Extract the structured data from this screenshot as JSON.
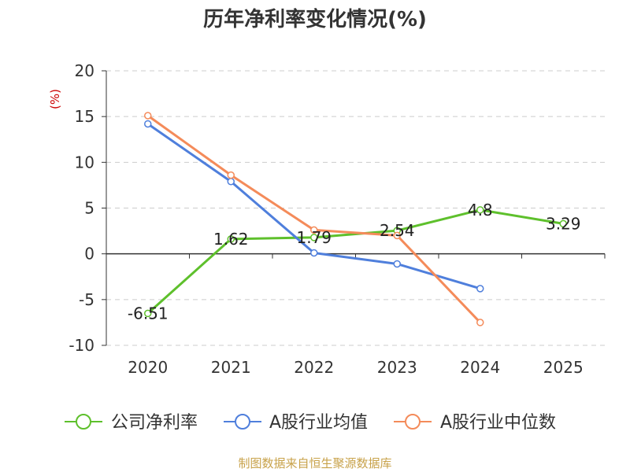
{
  "chart_data": {
    "type": "line",
    "title": "历年净利率变化情况(%)",
    "ylabel": "(%)",
    "xlabel": "",
    "categories": [
      "2020",
      "2021",
      "2022",
      "2023",
      "2024",
      "2025"
    ],
    "ylim": [
      -10,
      20
    ],
    "yticks": [
      20,
      15,
      10,
      5,
      0,
      -5,
      -10
    ],
    "grid": true,
    "legend_position": "bottom",
    "series": [
      {
        "name": "公司净利率",
        "color": "#5ec02c",
        "values": [
          -6.51,
          1.62,
          1.79,
          2.54,
          4.8,
          3.29
        ],
        "labels": [
          "-6.51",
          "1.62",
          "1.79",
          "2.54",
          "4.8",
          "3.29"
        ]
      },
      {
        "name": "A股行业均值",
        "color": "#4f7fdc",
        "values": [
          14.2,
          7.9,
          0.1,
          -1.1,
          -3.8,
          null
        ]
      },
      {
        "name": "A股行业中位数",
        "color": "#f48b5a",
        "values": [
          15.1,
          8.6,
          2.6,
          2.0,
          -7.5,
          null
        ]
      }
    ]
  },
  "footer": {
    "source": "制图数据来自恒生聚源数据库"
  }
}
